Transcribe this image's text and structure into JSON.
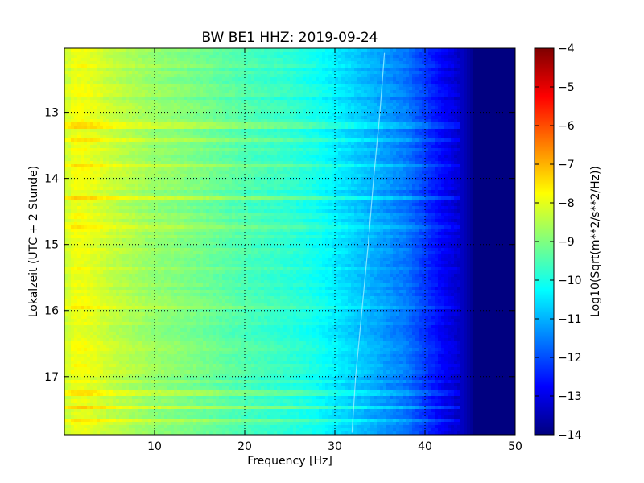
{
  "chart_data": {
    "type": "heatmap",
    "title": "BW BE1 HHZ: 2019-09-24",
    "xlabel": "Frequency [Hz]",
    "ylabel": "Lokalzeit (UTC + 2 Stunde)",
    "xlim": [
      0,
      50
    ],
    "ylim": [
      17.88,
      12.03
    ],
    "x_ticks": [
      10,
      20,
      30,
      40,
      50
    ],
    "x_tick_labels": [
      "10",
      "20",
      "30",
      "40",
      "50"
    ],
    "y_ticks": [
      13,
      14,
      15,
      16,
      17
    ],
    "y_tick_labels": [
      "13",
      "14",
      "15",
      "16",
      "17"
    ],
    "grid": true,
    "grid_style": "dotted",
    "colorscale": "jet",
    "colorbar": {
      "label": "Log10(Sqrt(m**2/s**2/Hz))",
      "range": [
        -14,
        -4
      ],
      "ticks": [
        -4,
        -5,
        -6,
        -7,
        -8,
        -9,
        -10,
        -11,
        -12,
        -13,
        -14
      ],
      "tick_labels": [
        "−4",
        "−5",
        "−6",
        "−7",
        "−8",
        "−9",
        "−10",
        "−11",
        "−12",
        "−13",
        "−14"
      ]
    },
    "frequency_profile": {
      "freq": [
        0.5,
        1,
        2,
        3,
        5,
        8,
        10,
        12,
        15,
        20,
        25,
        28,
        30,
        32,
        34,
        36,
        38,
        40,
        42,
        44,
        45,
        46,
        50
      ],
      "log_amplitude": [
        -8.2,
        -7.9,
        -7.9,
        -8.0,
        -8.3,
        -8.6,
        -8.8,
        -8.9,
        -9.1,
        -9.5,
        -9.8,
        -10.1,
        -10.4,
        -10.7,
        -11.0,
        -11.3,
        -11.6,
        -12.2,
        -12.8,
        -13.3,
        -13.7,
        -14.0,
        -14.0
      ]
    },
    "high_amplitude_bands_time": [
      13.2,
      13.4,
      13.8,
      14.3,
      14.75,
      15.95,
      17.25,
      17.45,
      17.65
    ],
    "drifting_line": {
      "time": [
        12.1,
        13.0,
        14.0,
        15.0,
        16.0,
        17.0,
        17.85
      ],
      "freq": [
        35.5,
        35.0,
        34.3,
        33.7,
        33.0,
        32.3,
        31.9
      ]
    }
  }
}
